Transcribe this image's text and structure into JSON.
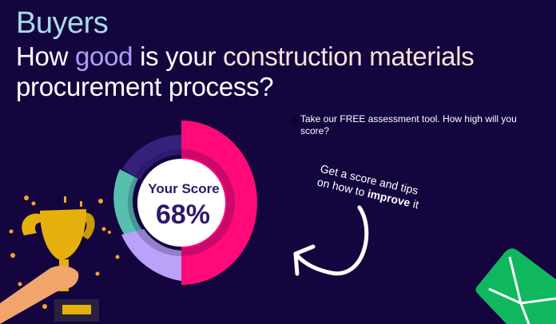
{
  "header": {
    "eyebrow": "Buyers",
    "headline_parts": [
      "How ",
      "good",
      " is your ",
      "construction materials",
      " procurement process?"
    ]
  },
  "promo": {
    "text": "Take our FREE assessment tool. How high will you score?"
  },
  "score_widget": {
    "label": "Your Score",
    "value": "68%",
    "score_percent": 68,
    "colors": {
      "pink": "#ff0a78",
      "teal": "#56bfae",
      "lavender": "#b9a2f7",
      "dark_purple": "#35207a"
    }
  },
  "callout": {
    "line1": "Get a score and tips",
    "line2_prefix": "on how to ",
    "line2_bold": "improve",
    "line2_suffix": " it"
  },
  "icons": {
    "trophy": "trophy-icon",
    "envelope": "envelope-icon",
    "arrow": "curved-arrow-icon"
  }
}
